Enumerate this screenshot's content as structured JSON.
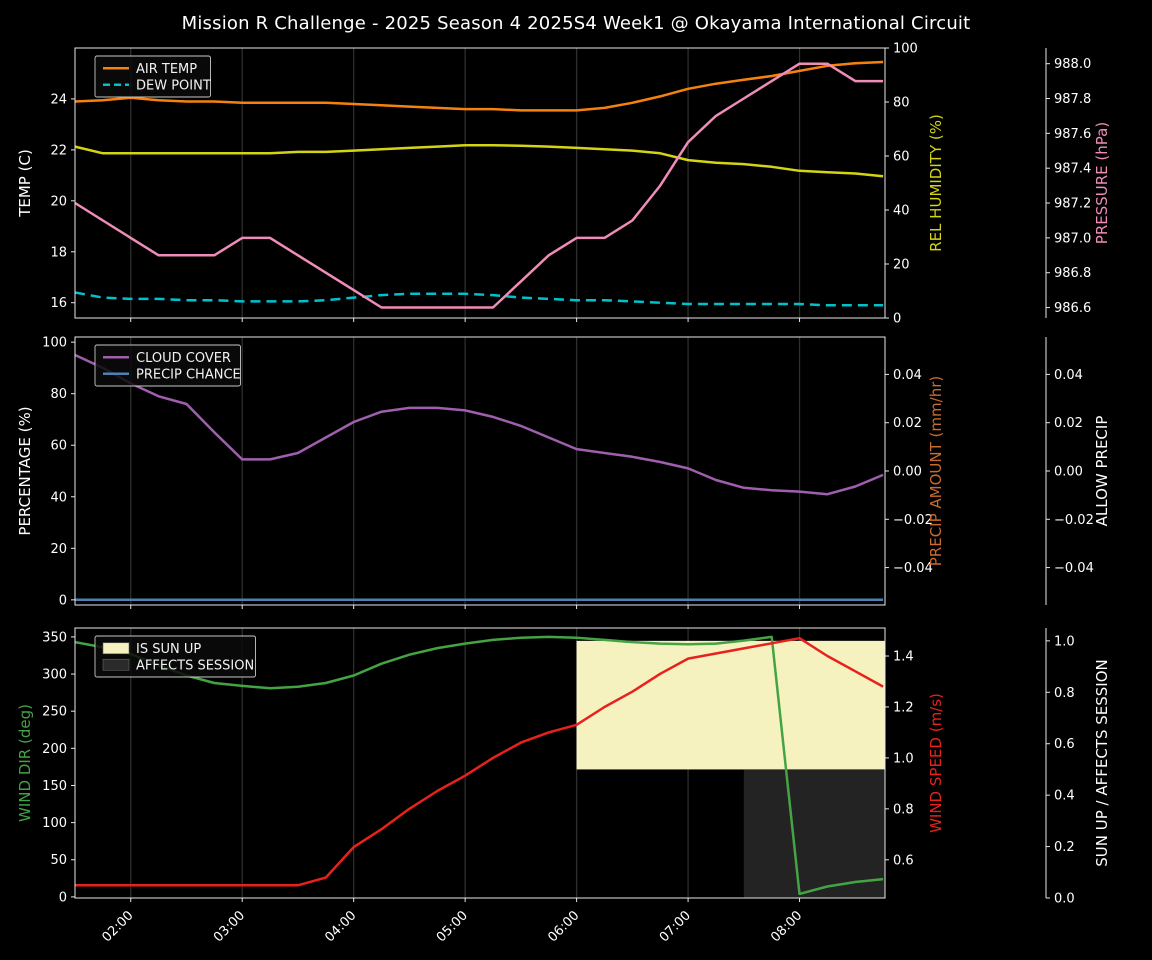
{
  "title": "Mission R Challenge - 2025 Season 4 2025S4 Week1 @ Okayama International Circuit",
  "colors": {
    "background": "#000000",
    "foreground": "#e8e8e8",
    "text": "#ffffff",
    "grid": "#2e2e2e",
    "air_temp": "#f5820d",
    "dew_point": "#00c2cb",
    "humidity": "#d4d414",
    "pressure": "#f08cb8",
    "cloud_cover": "#9f5fae",
    "precip_chance": "#4f7fb5",
    "precip_amount": "#c76b2e",
    "wind_dir": "#44a344",
    "wind_speed": "#e8211d",
    "sun_up_fill": "#f5f2c0",
    "affects_session_fill": "#232323"
  },
  "x_axis": {
    "xlim": [
      "01:30",
      "08:46"
    ],
    "ticks": [
      "02:00",
      "03:00",
      "04:00",
      "05:00",
      "06:00",
      "07:00",
      "08:00"
    ],
    "times": [
      "01:30",
      "01:45",
      "02:00",
      "02:15",
      "02:30",
      "02:45",
      "03:00",
      "03:15",
      "03:30",
      "03:45",
      "04:00",
      "04:15",
      "04:30",
      "04:45",
      "05:00",
      "05:15",
      "05:30",
      "05:45",
      "06:00",
      "06:15",
      "06:30",
      "06:45",
      "07:00",
      "07:15",
      "07:30",
      "07:45",
      "08:00",
      "08:15",
      "08:30",
      "08:45"
    ]
  },
  "chart_data": [
    {
      "type": "line",
      "name": "temp-humidity-pressure-panel",
      "axes": {
        "left": {
          "label": "TEMP (C)",
          "color": "#ffffff",
          "range": [
            15.4,
            26.0
          ],
          "ticks": [
            16,
            18,
            20,
            22,
            24
          ],
          "tick_labels": [
            "16",
            "18",
            "20",
            "22",
            "24"
          ]
        },
        "right": [
          {
            "label": "REL HUMIDITY (%)",
            "color": "#d4d414",
            "range": [
              0,
              100
            ],
            "ticks": [
              0,
              20,
              40,
              60,
              80,
              100
            ],
            "tick_labels": [
              "0",
              "20",
              "40",
              "60",
              "80",
              "100"
            ]
          },
          {
            "label": "PRESSURE (hPa)",
            "color": "#f08cb8",
            "range": [
              986.54,
              988.09
            ],
            "ticks": [
              986.6,
              986.8,
              987.0,
              987.2,
              987.4,
              987.6,
              987.8,
              988.0
            ],
            "tick_labels": [
              "986.6",
              "986.8",
              "987.0",
              "987.2",
              "987.4",
              "987.6",
              "987.8",
              "988.0"
            ]
          }
        ]
      },
      "series": [
        {
          "name": "AIR TEMP",
          "axis": "left",
          "color": "#f5820d",
          "dash": false,
          "values": [
            23.9,
            23.95,
            24.05,
            23.95,
            23.9,
            23.9,
            23.85,
            23.85,
            23.85,
            23.85,
            23.8,
            23.75,
            23.7,
            23.65,
            23.6,
            23.6,
            23.55,
            23.55,
            23.55,
            23.65,
            23.85,
            24.1,
            24.4,
            24.6,
            24.75,
            24.9,
            25.1,
            25.3,
            25.4,
            25.45
          ]
        },
        {
          "name": "DEW POINT",
          "axis": "left",
          "color": "#00c2cb",
          "dash": true,
          "values": [
            16.4,
            16.2,
            16.15,
            16.15,
            16.1,
            16.1,
            16.05,
            16.05,
            16.05,
            16.1,
            16.2,
            16.3,
            16.35,
            16.35,
            16.35,
            16.3,
            16.2,
            16.15,
            16.1,
            16.1,
            16.05,
            16.0,
            15.95,
            15.95,
            15.95,
            15.95,
            15.95,
            15.9,
            15.9,
            15.9
          ]
        },
        {
          "name": "REL HUMIDITY",
          "axis": "right0",
          "color": "#d4d414",
          "dash": false,
          "values": [
            63.5,
            61.0,
            61.0,
            61.0,
            61.0,
            61.0,
            61.0,
            61.0,
            61.5,
            61.5,
            62.0,
            62.5,
            63.0,
            63.5,
            64.0,
            64.0,
            63.8,
            63.5,
            63.0,
            62.5,
            62.0,
            61.0,
            58.5,
            57.5,
            57.0,
            56.0,
            54.5,
            54.0,
            53.5,
            52.5
          ]
        },
        {
          "name": "PRESSURE",
          "axis": "right1",
          "color": "#f08cb8",
          "dash": false,
          "values": [
            987.2,
            987.1,
            987.0,
            986.9,
            986.9,
            986.9,
            987.0,
            987.0,
            986.9,
            986.8,
            986.7,
            986.6,
            986.6,
            986.6,
            986.6,
            986.6,
            986.75,
            986.9,
            987.0,
            987.0,
            987.1,
            987.3,
            987.55,
            987.7,
            987.8,
            987.9,
            988.0,
            988.0,
            987.9,
            987.9
          ]
        }
      ],
      "regions": [],
      "legend": [
        {
          "label": "AIR TEMP",
          "type": "line",
          "color": "#f5820d"
        },
        {
          "label": "DEW POINT",
          "type": "dash",
          "color": "#00c2cb"
        }
      ]
    },
    {
      "type": "line",
      "name": "cloud-precip-panel",
      "axes": {
        "left": {
          "label": "PERCENTAGE (%)",
          "color": "#ffffff",
          "range": [
            -2,
            102
          ],
          "ticks": [
            0,
            20,
            40,
            60,
            80,
            100
          ],
          "tick_labels": [
            "0",
            "20",
            "40",
            "60",
            "80",
            "100"
          ]
        },
        "right": [
          {
            "label": "PRECIP AMOUNT (mm/hr)",
            "color": "#c76b2e",
            "range": [
              -0.0555,
              0.0555
            ],
            "ticks": [
              -0.04,
              -0.02,
              0.0,
              0.02,
              0.04
            ],
            "tick_labels": [
              "−0.04",
              "−0.02",
              "0.00",
              "0.02",
              "0.04"
            ]
          },
          {
            "label": "ALLOW PRECIP",
            "color": "#ffffff",
            "range": [
              -0.0555,
              0.0555
            ],
            "ticks": [
              -0.04,
              -0.02,
              0.0,
              0.02,
              0.04
            ],
            "tick_labels": [
              "−0.04",
              "−0.02",
              "0.00",
              "0.02",
              "0.04"
            ]
          }
        ]
      },
      "series": [
        {
          "name": "CLOUD COVER",
          "axis": "left",
          "color": "#9f5fae",
          "dash": false,
          "values": [
            95,
            90,
            84,
            79,
            76,
            65,
            54.5,
            54.5,
            57,
            63,
            69,
            73,
            74.5,
            74.5,
            73.5,
            71,
            67.5,
            63,
            58.5,
            57,
            55.5,
            53.5,
            51,
            46.5,
            43.5,
            42.5,
            42,
            41,
            44,
            48.5
          ]
        },
        {
          "name": "PRECIP CHANCE",
          "axis": "left",
          "color": "#4f7fb5",
          "dash": false,
          "values": [
            0,
            0,
            0,
            0,
            0,
            0,
            0,
            0,
            0,
            0,
            0,
            0,
            0,
            0,
            0,
            0,
            0,
            0,
            0,
            0,
            0,
            0,
            0,
            0,
            0,
            0,
            0,
            0,
            0,
            0
          ]
        }
      ],
      "regions": [],
      "legend": [
        {
          "label": "CLOUD COVER",
          "type": "line",
          "color": "#9f5fae"
        },
        {
          "label": "PRECIP CHANCE",
          "type": "line",
          "color": "#4f7fb5"
        }
      ]
    },
    {
      "type": "line",
      "name": "wind-sun-panel",
      "axes": {
        "left": {
          "label": "WIND DIR (deg)",
          "color": "#44a344",
          "range": [
            -1.5,
            362
          ],
          "ticks": [
            0,
            50,
            100,
            150,
            200,
            250,
            300,
            350
          ],
          "tick_labels": [
            "0",
            "50",
            "100",
            "150",
            "200",
            "250",
            "300",
            "350"
          ]
        },
        "right": [
          {
            "label": "WIND SPEED (m/s)",
            "color": "#e8211d",
            "range": [
              0.45,
              1.51
            ],
            "ticks": [
              0.6,
              0.8,
              1.0,
              1.2,
              1.4
            ],
            "tick_labels": [
              "0.6",
              "0.8",
              "1.0",
              "1.2",
              "1.4"
            ]
          },
          {
            "label": "SUN UP / AFFECTS SESSION",
            "color": "#ffffff",
            "range": [
              0,
              1.05
            ],
            "ticks": [
              0.0,
              0.2,
              0.4,
              0.6,
              0.8,
              1.0
            ],
            "tick_labels": [
              "0.0",
              "0.2",
              "0.4",
              "0.6",
              "0.8",
              "1.0"
            ]
          }
        ]
      },
      "series": [
        {
          "name": "WIND DIR",
          "axis": "left",
          "color": "#44a344",
          "dash": false,
          "values": [
            343,
            336,
            327,
            312,
            298,
            288,
            284,
            281,
            283,
            288,
            298,
            314,
            326,
            335,
            341,
            346,
            349,
            350,
            349,
            346,
            343,
            341,
            340,
            341,
            345,
            350,
            4,
            14,
            20,
            24
          ]
        },
        {
          "name": "WIND SPEED",
          "axis": "right0",
          "color": "#e8211d",
          "dash": false,
          "values": [
            0.5,
            0.5,
            0.5,
            0.5,
            0.5,
            0.5,
            0.5,
            0.5,
            0.5,
            0.53,
            0.65,
            0.72,
            0.8,
            0.87,
            0.93,
            1.0,
            1.06,
            1.1,
            1.13,
            1.2,
            1.26,
            1.33,
            1.39,
            1.41,
            1.43,
            1.45,
            1.47,
            1.4,
            1.34,
            1.28
          ]
        }
      ],
      "regions": [
        {
          "label": "IS SUN UP",
          "axis": "right1",
          "from": "06:00",
          "to": "08:46",
          "v0": 0.5,
          "v1": 1.0,
          "color": "#f5f2c0"
        },
        {
          "label": "AFFECTS SESSION",
          "axis": "right1",
          "from": "07:30",
          "to": "08:46",
          "v0": 0.0,
          "v1": 0.5,
          "color": "#232323"
        }
      ],
      "legend": [
        {
          "label": "IS SUN UP",
          "type": "patch",
          "color": "#f5f2c0"
        },
        {
          "label": "AFFECTS SESSION",
          "type": "patch",
          "color": "#2a2a2a"
        }
      ]
    }
  ]
}
